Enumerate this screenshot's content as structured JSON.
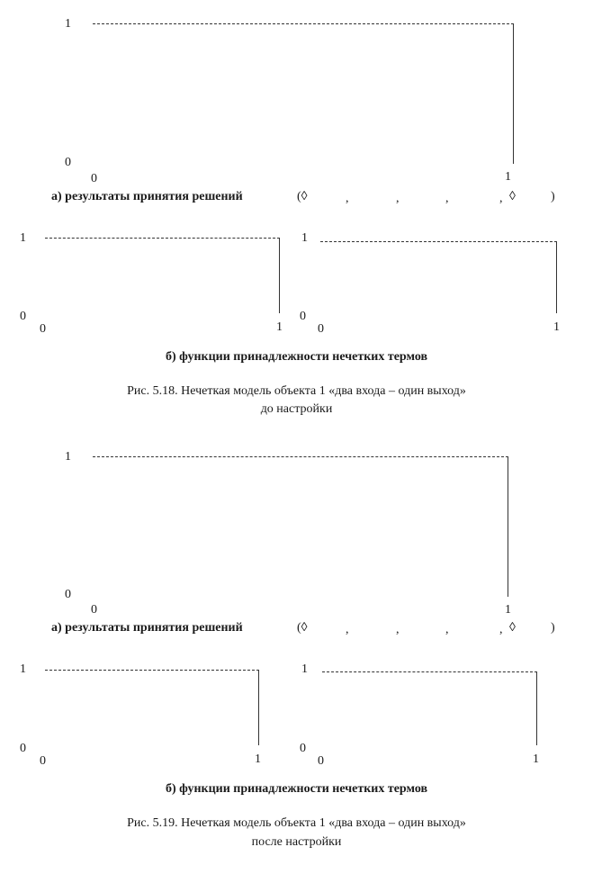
{
  "figures": [
    {
      "id": "fig-5-18",
      "top_chart": {
        "y_max_label": "1",
        "y_min_label": "0",
        "x_origin_label": "0",
        "x_end_label": "1"
      },
      "top_caption": {
        "prefix": "а) результаты принятия решений",
        "tuple_open": "(◊",
        "commas": [
          ",",
          ",",
          ",",
          ","
        ],
        "last_symbol": "◊",
        "tuple_close": ")"
      },
      "left_chart": {
        "y_max_label": "1",
        "y_min_label": "0",
        "x_origin_label": "0",
        "x_end_label": "1"
      },
      "right_chart": {
        "y_max_label": "1",
        "y_min_label": "0",
        "x_origin_label": "0",
        "x_end_label": "1"
      },
      "bottom_caption": "б) функции принадлежности нечетких термов",
      "figure_caption_line1": "Рис. 5.18. Нечеткая модель объекта 1 «два входа – один выход»",
      "figure_caption_line2": "до настройки"
    },
    {
      "id": "fig-5-19",
      "top_chart": {
        "y_max_label": "1",
        "y_min_label": "0",
        "x_origin_label": "0",
        "x_end_label": "1"
      },
      "top_caption": {
        "prefix": "а) результаты принятия решений",
        "tuple_open": "(◊",
        "commas": [
          ",",
          ",",
          ",",
          ","
        ],
        "last_symbol": "◊",
        "tuple_close": ")"
      },
      "left_chart": {
        "y_max_label": "1",
        "y_min_label": "0",
        "x_origin_label": "0",
        "x_end_label": "1"
      },
      "right_chart": {
        "y_max_label": "1",
        "y_min_label": "0",
        "x_origin_label": "0",
        "x_end_label": "1"
      },
      "bottom_caption": "б) функции принадлежности нечетких термов",
      "figure_caption_line1": "Рис. 5.19. Нечеткая модель объекта 1 «два входа – один выход»",
      "figure_caption_line2": "после настройки"
    }
  ]
}
